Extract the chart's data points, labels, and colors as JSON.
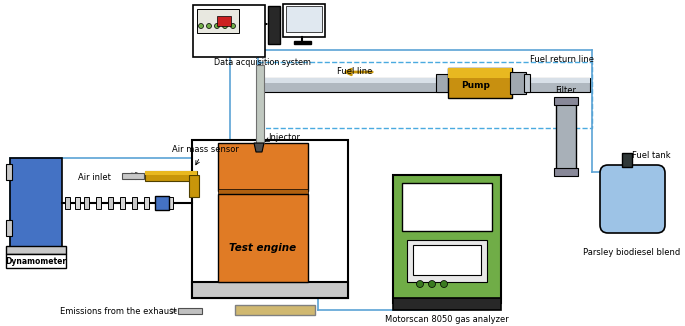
{
  "bg_color": "#ffffff",
  "figsize": [
    6.85,
    3.26
  ],
  "dpi": 100,
  "colors": {
    "blue": "#4472C4",
    "light_blue": "#9DC3E6",
    "orange_engine": "#E07B25",
    "green": "#70AD47",
    "dark_green": "#3A7A20",
    "gray": "#808080",
    "dark_gray": "#505050",
    "light_gray": "#C8C8C8",
    "silver": "#B0B8C0",
    "gold": "#C8960A",
    "gold_light": "#E8B820",
    "white": "#FFFFFF",
    "black": "#000000",
    "connect_blue": "#5BA3D5",
    "dashed_blue": "#4AAAE0",
    "pump_gold": "#C89010",
    "pump_end": "#A0A8B0",
    "filter_gray": "#A8B0B8"
  },
  "labels": {
    "dynamometer": "Dynamometer",
    "test_engine": "Test engine",
    "air_inlet": "Air inlet",
    "air_mass_sensor": "Air mass sensor",
    "injector": "Injector",
    "data_acq": "Data acquisition system",
    "fuel_return": "Fuel return line",
    "fuel_line": "Fuel line",
    "pump": "Pump",
    "filter": "Filter",
    "fuel_tank": "Fuel tank",
    "parsley": "Parsley biodiesel blend",
    "motorscan": "Motorscan 8050 gas analyzer",
    "emissions": "Emissions from the exhaust"
  }
}
